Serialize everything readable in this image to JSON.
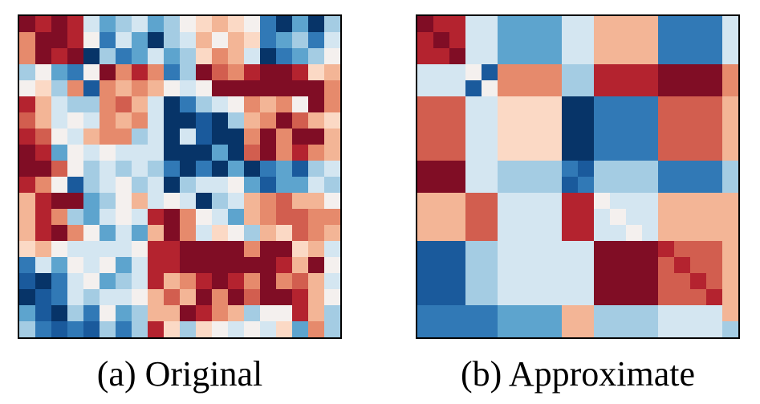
{
  "palette": {
    "dr": "#800d25",
    "r": "#b4232f",
    "rm": "#d25e4f",
    "o": "#e68a6c",
    "s": "#f3b596",
    "p": "#fbd9c5",
    "w": "#f4f0ee",
    "lb": "#d4e6f1",
    "sk": "#a4cce3",
    "mb": "#5da4ce",
    "b": "#3179b6",
    "db": "#1a5a9c",
    "nv": "#073468"
  },
  "chart_data": [
    {
      "type": "heatmap",
      "caption": "(a) Original",
      "rows": 20,
      "cols": 20,
      "values": [
        "dr r dr r lb mb sk lb mb sk w p s p w b nv mb nv sk",
        "o dr dr r w b lb mb nv sk lb s w s p b mb sk b lb",
        "o dr r dr nv sk b mb lb mb sk p o s lb nv b mb sk w",
        "sk w mb b w dr o r o b sk dr rm o r dr dr r p s",
        "w p sk o db o s o s w lb w dr dr dr dr dr dr dr o",
        "r s lb sk sk o rm s lb nv b sk lb w o s o w dr o",
        "rm s lb w lb o s o lb nv nv db nv sk s o dr rm s p",
        "r rm w lb s o o sk lb nv lb db nv nv o dr o dr dr s",
        "dr r mb w lb w lb lb lb nv nv nv mb nv rm dr o r o s",
        "dr dr rm w sk lb sk lb sk b nv b nv mb nv b mb db sk lb",
        "r o w db sk lb w sk lb nv sk lb lb w mb db mb mb lb sk",
        "s r dr dr mb sk w s lb w lb nv sk lb s o rm s s w",
        "s r o sk mb lb w lb r dr o w lb mb s o rm rm o o",
        "s r dr o w mb lb mb s dr o lb p w sk s p rm o s",
        "p s w lb lb lb lb w r r dr dr dr dr o dr dr p s lb",
        "b lb mb w lb w mb lb r r dr dr dr dr dr dr r s dr w",
        "db nv b lb w mb sk lb r s o r dr r o dr o rm s lb",
        "nv db b lb sk lb lb w s rm s dr o dr rm dr dr r s w",
        "mb db nv sk b w mb sk s s dr r o s sk w w r s sk",
        "sk b db b db sk b sk r p sk p w lb w lb p mb o sk"
      ]
    },
    {
      "type": "heatmap",
      "caption": "(b) Approximate",
      "rows": 20,
      "cols": 20,
      "values": [
        "dr r r lb lb mb mb mb mb lb lb s s s s b b b b lb",
        "r dr r lb lb mb mb mb mb lb lb s s s s b b b b lb",
        "r r dr lb lb mb mb mb mb lb lb s s s s b b b b lb",
        "lb lb lb w db o o o o sk sk r r r r dr dr dr dr o",
        "lb lb lb db w o o o o sk sk r r r r dr dr dr dr o",
        "rm rm rm lb lb p p p p nv nv b b b b rm rm rm rm s",
        "rm rm rm lb lb p p p p nv nv b b b b rm rm rm rm s",
        "rm rm rm lb lb p p p p nv nv b b b b rm rm rm rm s",
        "rm rm rm lb lb p p p p nv nv b b b b rm rm rm rm s",
        "dr dr dr lb lb sk sk sk sk b db sk sk sk sk b b b b sk",
        "dr dr dr lb lb sk sk sk sk db b sk sk sk sk b b b b sk",
        "s s s rm rm lb lb lb lb r r w lb lb lb s s s s s",
        "s s s rm rm lb lb lb lb r r lb w lb lb s s s s s",
        "s s s rm rm lb lb lb lb r r lb lb w lb s s s s s",
        "db db db sk sk lb lb lb lb lb lb dr dr dr dr r rm rm rm s",
        "db db db sk sk lb lb lb lb lb lb dr dr dr dr rm r rm rm s",
        "db db db sk sk lb lb lb lb lb lb dr dr dr dr rm rm r rm s",
        "db db db sk sk lb lb lb lb lb lb dr dr dr dr rm rm rm r s",
        "b b b b b mb mb mb mb s s sk sk sk sk lb lb lb lb s",
        "b b b b b mb mb mb mb s s sk sk sk sk lb lb lb lb sk"
      ]
    }
  ]
}
